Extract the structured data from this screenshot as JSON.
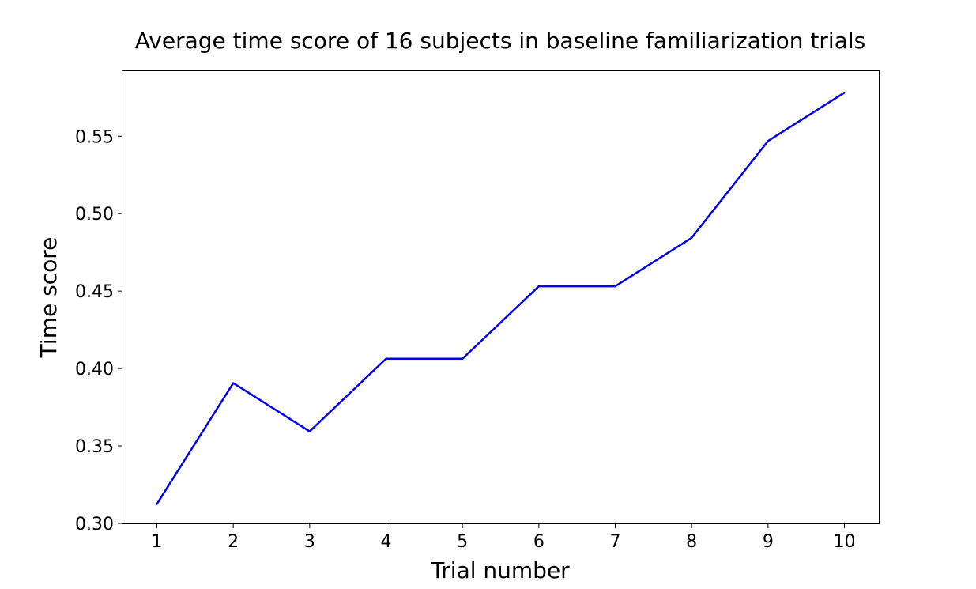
{
  "chart_data": {
    "type": "line",
    "title": "Average time score of 16 subjects in baseline familiarization trials",
    "xlabel": "Trial number",
    "ylabel": "Time score",
    "x": [
      1,
      2,
      3,
      4,
      5,
      6,
      7,
      8,
      9,
      10
    ],
    "xticks": [
      "1",
      "2",
      "3",
      "4",
      "5",
      "6",
      "7",
      "8",
      "9",
      "10"
    ],
    "yticks": [
      "0.30",
      "0.35",
      "0.40",
      "0.45",
      "0.50",
      "0.55"
    ],
    "ylim": [
      0.3,
      0.592
    ],
    "xlim": [
      0.55,
      10.45
    ],
    "series": [
      {
        "values": [
          0.3125,
          0.3906,
          0.3594,
          0.4063,
          0.4063,
          0.4531,
          0.4531,
          0.4844,
          0.5469,
          0.5781
        ],
        "color": "#0000ee"
      }
    ],
    "grid": false,
    "legend": "none"
  }
}
